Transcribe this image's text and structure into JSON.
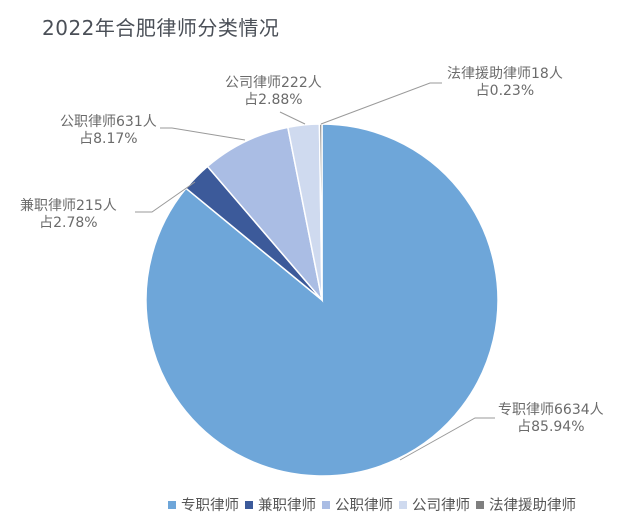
{
  "title": "2022年合肥律师分类情况",
  "chart_data": {
    "type": "pie",
    "title": "2022年合肥律师分类情况",
    "start_angle": "12 o'clock, clockwise",
    "legend_position": "bottom",
    "slices": [
      {
        "name": "专职律师",
        "count": 6634,
        "percent": 85.94,
        "color": "#6ea6d9",
        "label_line1": "专职律师6634人",
        "label_line2": "占85.94%"
      },
      {
        "name": "兼职律师",
        "count": 215,
        "percent": 2.78,
        "color": "#3c5a9a",
        "label_line1": "兼职律师215人",
        "label_line2": "占2.78%"
      },
      {
        "name": "公职律师",
        "count": 631,
        "percent": 8.17,
        "color": "#aabde4",
        "label_line1": "公职律师631人",
        "label_line2": "占8.17%"
      },
      {
        "name": "公司律师",
        "count": 222,
        "percent": 2.88,
        "color": "#cfdaef",
        "label_line1": "公司律师222人",
        "label_line2": "占2.88%"
      },
      {
        "name": "法律援助律师",
        "count": 18,
        "percent": 0.23,
        "color": "#7f7f7f",
        "label_line1": "法律援助律师18人",
        "label_line2": "占0.23%"
      }
    ]
  },
  "legend": [
    "专职律师",
    "兼职律师",
    "公职律师",
    "公司律师",
    "法律援助律师"
  ]
}
